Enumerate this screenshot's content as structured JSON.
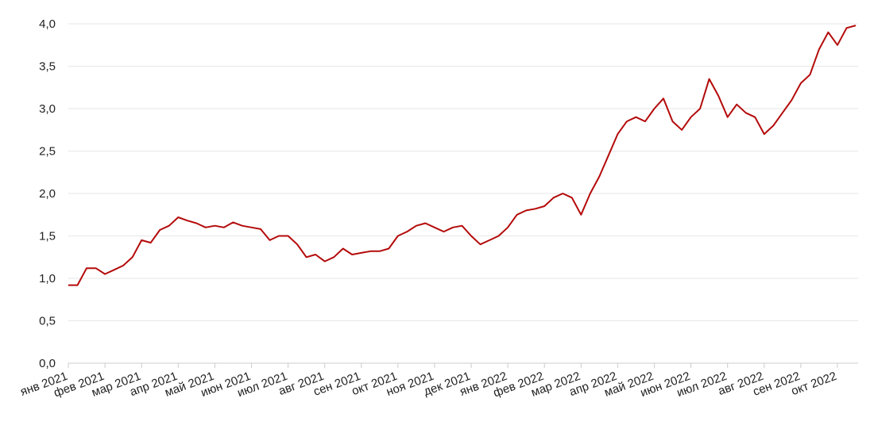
{
  "chart_data": {
    "type": "line",
    "categories": [
      "янв 2021",
      null,
      null,
      null,
      "фев 2021",
      null,
      null,
      null,
      "мар 2021",
      null,
      null,
      null,
      "апр 2021",
      null,
      null,
      null,
      "май 2021",
      null,
      null,
      null,
      "июн 2021",
      null,
      null,
      null,
      "июл 2021",
      null,
      null,
      null,
      "авг 2021",
      null,
      null,
      null,
      "сен 2021",
      null,
      null,
      null,
      "окт 2021",
      null,
      null,
      null,
      "ноя 2021",
      null,
      null,
      null,
      "дек 2021",
      null,
      null,
      null,
      "янв 2022",
      null,
      null,
      null,
      "фев 2022",
      null,
      null,
      null,
      "мар 2022",
      null,
      null,
      null,
      "апр 2022",
      null,
      null,
      null,
      "май 2022",
      null,
      null,
      null,
      "июн 2022",
      null,
      null,
      null,
      "июл 2022",
      null,
      null,
      null,
      "авг 2022",
      null,
      null,
      null,
      "сен 2022",
      null,
      null,
      null,
      "окт 2022",
      null,
      null
    ],
    "series": [
      {
        "color": "#b40a0a",
        "values": [
          0.92,
          0.92,
          1.12,
          1.12,
          1.05,
          1.1,
          1.15,
          1.25,
          1.45,
          1.42,
          1.57,
          1.62,
          1.72,
          1.68,
          1.65,
          1.6,
          1.62,
          1.6,
          1.66,
          1.62,
          1.6,
          1.58,
          1.45,
          1.5,
          1.5,
          1.4,
          1.25,
          1.28,
          1.2,
          1.25,
          1.35,
          1.28,
          1.3,
          1.32,
          1.32,
          1.35,
          1.5,
          1.55,
          1.62,
          1.65,
          1.6,
          1.55,
          1.6,
          1.62,
          1.5,
          1.4,
          1.45,
          1.5,
          1.6,
          1.75,
          1.8,
          1.82,
          1.85,
          1.95,
          2.0,
          1.95,
          1.75,
          2.0,
          2.2,
          2.45,
          2.7,
          2.85,
          2.9,
          2.85,
          3.0,
          3.12,
          2.85,
          2.75,
          2.9,
          3.0,
          3.35,
          3.15,
          2.9,
          3.05,
          2.95,
          2.9,
          2.7,
          2.8,
          2.95,
          3.1,
          3.3,
          3.4,
          3.7,
          3.9,
          3.75,
          3.95,
          3.98
        ]
      }
    ],
    "ylim": [
      0,
      4
    ],
    "yticks": [
      {
        "value": 0,
        "label": "0,0"
      },
      {
        "value": 0.5,
        "label": "0,5"
      },
      {
        "value": 1,
        "label": "1,0"
      },
      {
        "value": 1.5,
        "label": "1,5"
      },
      {
        "value": 2,
        "label": "2,0"
      },
      {
        "value": 2.5,
        "label": "2,5"
      },
      {
        "value": 3,
        "label": "3,0"
      },
      {
        "value": 3.5,
        "label": "3,5"
      },
      {
        "value": 4,
        "label": "4,0"
      }
    ],
    "grid": true
  }
}
